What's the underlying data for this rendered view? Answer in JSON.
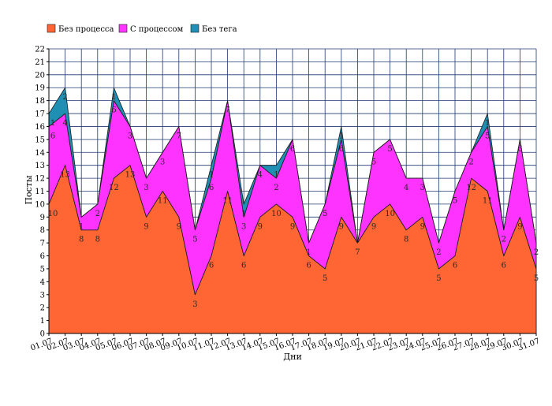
{
  "chart_data": {
    "type": "area",
    "stacked": true,
    "title": "",
    "xlabel": "Дни",
    "ylabel": "Посты",
    "ylim": [
      0,
      22
    ],
    "grid": true,
    "legend_position": "top-left",
    "categories": [
      "01.07",
      "02.07",
      "03.07",
      "04.07",
      "05.07",
      "06.07",
      "07.07",
      "08.07",
      "09.07",
      "10.07",
      "11.07",
      "12.07",
      "13.07",
      "14.07",
      "15.07",
      "16.07",
      "17.07",
      "18.07",
      "19.07",
      "20.07",
      "21.07",
      "22.07",
      "23.07",
      "24.07",
      "25.07",
      "26.07",
      "27.07",
      "28.07",
      "29.07",
      "30.07",
      "31.07"
    ],
    "series": [
      {
        "name": "Без процесса",
        "color": "#ff6633",
        "values": [
          10,
          13,
          8,
          8,
          12,
          13,
          9,
          11,
          9,
          3,
          6,
          11,
          6,
          9,
          10,
          9,
          6,
          5,
          9,
          7,
          9,
          10,
          8,
          9,
          5,
          6,
          12,
          11,
          6,
          9,
          5
        ]
      },
      {
        "name": "С процессом",
        "color": "#ff33ff",
        "values": [
          6,
          4,
          1,
          2,
          6,
          3,
          3,
          3,
          7,
          5,
          6,
          7,
          3,
          4,
          2,
          6,
          1,
          5,
          6,
          0,
          5,
          5,
          4,
          3,
          2,
          5,
          2,
          5,
          2,
          6,
          2
        ]
      },
      {
        "name": "Без тега",
        "color": "#1f8fb4",
        "values": [
          1,
          2,
          0,
          0,
          1,
          0,
          0,
          0,
          0,
          0,
          1,
          0,
          1,
          0,
          1,
          0,
          0,
          0,
          1,
          0,
          0,
          0,
          0,
          0,
          0,
          0,
          0,
          1,
          0,
          0,
          0
        ]
      }
    ],
    "label_values": [
      {
        "series": 0,
        "labels": [
          "10",
          "13",
          "8",
          "8",
          "12",
          "13",
          "9",
          "11",
          "9",
          "3",
          "6",
          "11",
          "6",
          "9",
          "10",
          "9",
          "6",
          "5",
          "9",
          "7",
          "9",
          "10",
          "8",
          "9",
          "5",
          "6",
          "12",
          "11",
          "6",
          "9",
          "5"
        ]
      },
      {
        "series": 1,
        "labels": [
          "6",
          "4",
          "1",
          "2",
          "6",
          "3",
          "3",
          "3",
          "7",
          "5",
          "6",
          "7",
          "3",
          "4",
          "2",
          "6",
          "1",
          "5",
          "6",
          "",
          "5",
          "5",
          "4",
          "3",
          "2",
          "5",
          "2",
          "5",
          "2",
          "6",
          "2"
        ]
      },
      {
        "series": 2,
        "labels": [
          "1",
          "2",
          "",
          "",
          "1",
          "",
          "",
          "",
          "",
          "",
          "1",
          "",
          "1",
          "",
          "1",
          "",
          "",
          "",
          "1",
          "",
          "",
          "",
          "",
          "",
          "",
          "",
          "",
          "1",
          "",
          "",
          ""
        ]
      }
    ]
  }
}
